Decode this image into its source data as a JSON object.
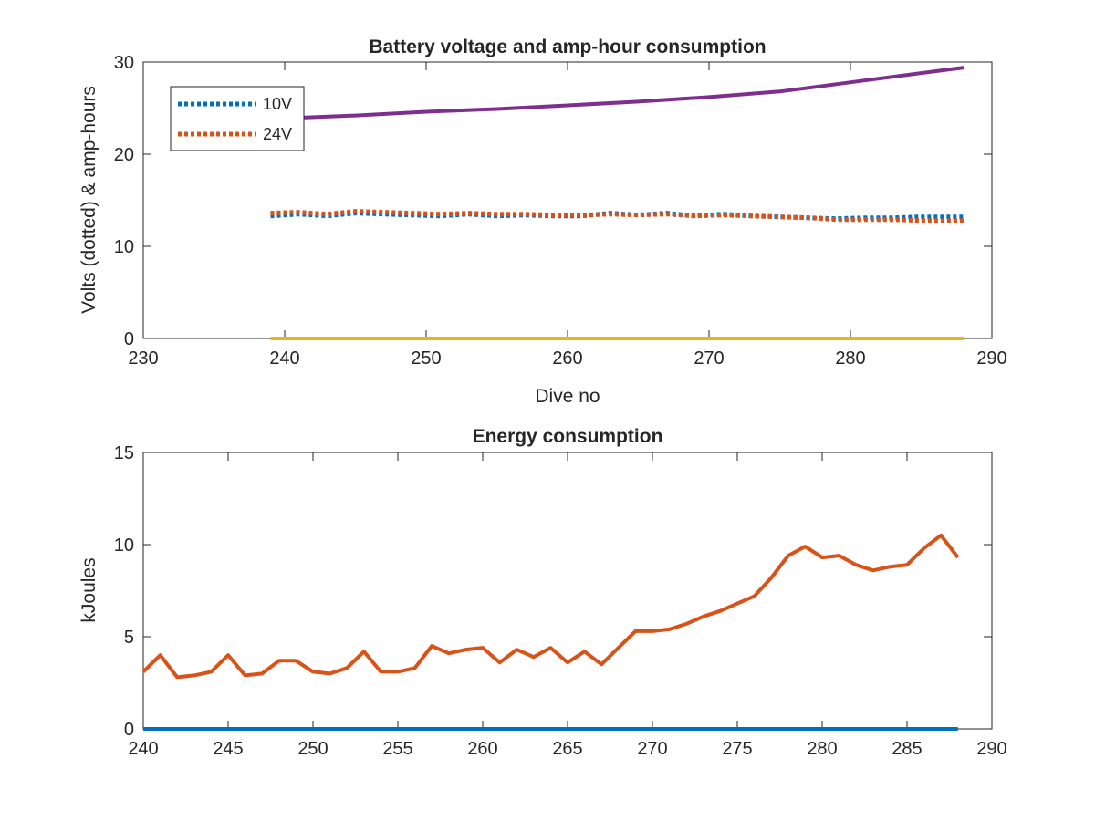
{
  "chart_data": [
    {
      "type": "line",
      "title": "Battery voltage and amp-hour consumption",
      "xlabel": "Dive no",
      "ylabel": "Volts (dotted) & amp-hours",
      "xlim": [
        230,
        290
      ],
      "ylim": [
        0,
        30
      ],
      "xticks": [
        230,
        240,
        250,
        260,
        270,
        280,
        290
      ],
      "yticks": [
        0,
        10,
        20,
        30
      ],
      "legend": "top-left",
      "series": [
        {
          "name": "10V",
          "style": "dotted",
          "color": "#0072bd",
          "x": [
            239,
            241,
            243,
            245,
            247,
            249,
            251,
            253,
            255,
            257,
            259,
            261,
            263,
            265,
            267,
            269,
            271,
            273,
            275,
            277,
            279,
            281,
            283,
            285,
            288
          ],
          "y": [
            13.3,
            13.5,
            13.3,
            13.6,
            13.5,
            13.4,
            13.3,
            13.5,
            13.3,
            13.4,
            13.3,
            13.3,
            13.6,
            13.4,
            13.6,
            13.3,
            13.5,
            13.3,
            13.2,
            13.1,
            13.0,
            13.1,
            13.1,
            13.2,
            13.2
          ]
        },
        {
          "name": "24V",
          "style": "dotted",
          "color": "#d95319",
          "x": [
            239,
            241,
            243,
            245,
            247,
            249,
            251,
            253,
            255,
            257,
            259,
            261,
            263,
            265,
            267,
            269,
            271,
            273,
            275,
            277,
            279,
            281,
            283,
            285,
            288
          ],
          "y": [
            13.6,
            13.7,
            13.5,
            13.8,
            13.7,
            13.6,
            13.5,
            13.6,
            13.5,
            13.5,
            13.4,
            13.4,
            13.5,
            13.4,
            13.5,
            13.3,
            13.4,
            13.3,
            13.2,
            13.1,
            12.9,
            12.9,
            12.9,
            12.8,
            12.8
          ]
        },
        {
          "style": "solid",
          "color": "#edb120",
          "x": [
            239,
            288
          ],
          "y": [
            0,
            0
          ]
        },
        {
          "style": "solid",
          "color": "#7e2f8e",
          "x": [
            240,
            245,
            250,
            255,
            260,
            265,
            270,
            275,
            278,
            281,
            284,
            286,
            288
          ],
          "y": [
            23.9,
            24.2,
            24.6,
            24.9,
            25.3,
            25.7,
            26.2,
            26.8,
            27.4,
            28.0,
            28.6,
            29.0,
            29.4
          ]
        }
      ]
    },
    {
      "type": "line",
      "title": "Energy consumption",
      "xlabel": "",
      "ylabel": "kJoules",
      "xlim": [
        240,
        290
      ],
      "ylim": [
        0,
        15
      ],
      "xticks": [
        240,
        245,
        250,
        255,
        260,
        265,
        270,
        275,
        280,
        285,
        290
      ],
      "yticks": [
        0,
        5,
        10,
        15
      ],
      "series": [
        {
          "style": "solid",
          "color": "#d95319",
          "x": [
            240,
            241,
            242,
            243,
            244,
            245,
            246,
            247,
            248,
            249,
            250,
            251,
            252,
            253,
            254,
            255,
            256,
            257,
            258,
            259,
            260,
            261,
            262,
            263,
            264,
            265,
            266,
            267,
            268,
            269,
            270,
            271,
            272,
            273,
            274,
            275,
            276,
            277,
            278,
            279,
            280,
            281,
            282,
            283,
            284,
            285,
            286,
            287,
            288
          ],
          "y": [
            3.1,
            4.0,
            2.8,
            2.9,
            3.1,
            4.0,
            2.9,
            3.0,
            3.7,
            3.7,
            3.1,
            3.0,
            3.3,
            4.2,
            3.1,
            3.1,
            3.3,
            4.5,
            4.1,
            4.3,
            4.4,
            3.6,
            4.3,
            3.9,
            4.4,
            3.6,
            4.2,
            3.5,
            4.4,
            5.3,
            5.3,
            5.4,
            5.7,
            6.1,
            6.4,
            6.8,
            7.2,
            8.2,
            9.4,
            9.9,
            9.3,
            9.4,
            8.9,
            8.6,
            8.8,
            8.9,
            9.8,
            10.5,
            9.3
          ]
        },
        {
          "style": "solid",
          "color": "#0072bd",
          "x": [
            240,
            288
          ],
          "y": [
            0,
            0
          ]
        }
      ]
    }
  ]
}
